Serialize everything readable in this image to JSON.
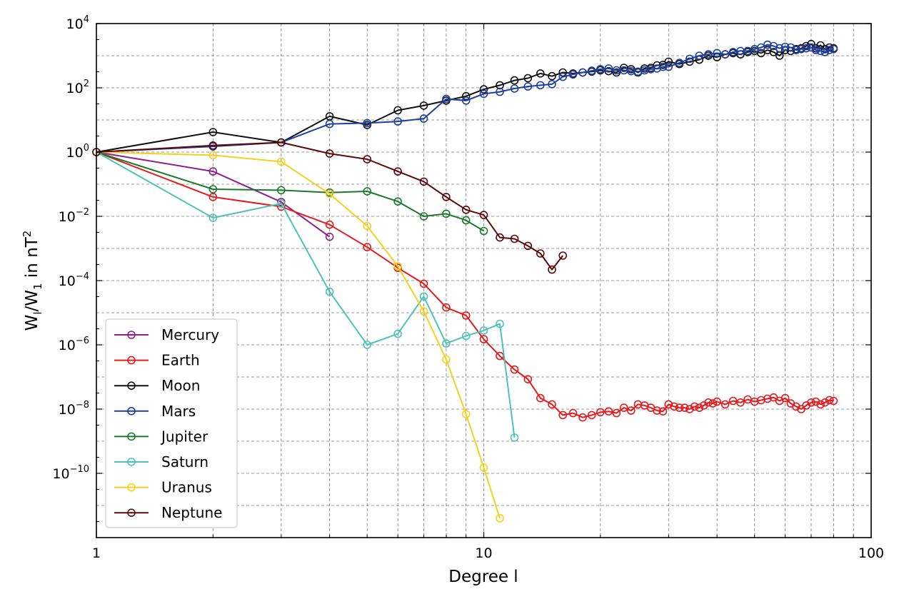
{
  "chart_data": {
    "type": "line",
    "title": "",
    "xlabel": "Degree l",
    "ylabel_main": "W",
    "ylabel_sub1": "l",
    "ylabel_mid": "/W",
    "ylabel_sub2": "1",
    "ylabel_unit": " in nT",
    "ylabel_sup": "2",
    "x_scale": "log",
    "y_scale": "log",
    "xlim": [
      1,
      100
    ],
    "ylim": [
      1e-12,
      10000.0
    ],
    "x_ticks": [
      1,
      10,
      100
    ],
    "x_tick_labels": [
      "1",
      "10",
      "100"
    ],
    "y_tick_exponents": [
      -10,
      -8,
      -6,
      -4,
      -2,
      0,
      2,
      4
    ],
    "y_tick_base": "10",
    "y_tick_exp_labels": [
      "−10",
      "−8",
      "−6",
      "−4",
      "−2",
      "0",
      "2",
      "4"
    ],
    "grid": true,
    "legend_position": "lower-left",
    "series": [
      {
        "name": "Mercury",
        "color": "#8e1f8e",
        "x": [
          1,
          2,
          3,
          4
        ],
        "y": [
          1,
          0.25,
          0.028,
          0.0023
        ]
      },
      {
        "name": "Earth",
        "color": "#e41a1c",
        "x": [
          1,
          2,
          3,
          4,
          5,
          6,
          7,
          8,
          9,
          10,
          11,
          12,
          13,
          14,
          15,
          16,
          17,
          18,
          19,
          20,
          21,
          22,
          23,
          24,
          25,
          26,
          27,
          28,
          29,
          30,
          31,
          32,
          33,
          34,
          35,
          36,
          37,
          38,
          39,
          40,
          42,
          44,
          46,
          48,
          50,
          52,
          54,
          56,
          58,
          60,
          62,
          64,
          66,
          68,
          70,
          72,
          74,
          76,
          78,
          80
        ],
        "y": [
          1,
          0.04,
          0.02,
          0.0055,
          0.0011,
          0.00025,
          8e-05,
          1.45e-05,
          8.2e-06,
          1.5e-06,
          4.5e-07,
          1.7e-07,
          8.5e-08,
          2.2e-08,
          1.4e-08,
          6.5e-09,
          7.5e-09,
          5.5e-09,
          6.5e-09,
          8e-09,
          8.5e-09,
          7.5e-09,
          1.1e-08,
          9e-09,
          1.4e-08,
          1.3e-08,
          1.1e-08,
          9e-09,
          8.5e-09,
          1.4e-08,
          1.2e-08,
          1.1e-08,
          1.1e-08,
          1e-08,
          1.2e-08,
          1.1e-08,
          1.3e-08,
          1.6e-08,
          1.5e-08,
          1.7e-08,
          1.4e-08,
          1.8e-08,
          1.6e-08,
          2e-08,
          1.7e-08,
          1.9e-08,
          2.1e-08,
          2.3e-08,
          1.8e-08,
          2.2e-08,
          1.5e-08,
          1.2e-08,
          1e-08,
          1.3e-08,
          1.6e-08,
          1.7e-08,
          1.4e-08,
          1.6e-08,
          1.9e-08,
          1.8e-08
        ]
      },
      {
        "name": "Moon",
        "color": "#111111",
        "x": [
          1,
          2,
          3,
          4,
          5,
          6,
          7,
          8,
          9,
          10,
          11,
          12,
          13,
          14,
          15,
          16,
          17,
          18,
          19,
          20,
          21,
          22,
          23,
          24,
          25,
          26,
          27,
          28,
          29,
          30,
          32,
          34,
          36,
          38,
          40,
          42,
          44,
          46,
          48,
          50,
          52,
          54,
          56,
          58,
          60,
          62,
          64,
          66,
          68,
          70,
          72,
          74,
          76,
          78,
          80
        ],
        "y": [
          1,
          4.2,
          2,
          13,
          7,
          20,
          28,
          40,
          55,
          90,
          120,
          170,
          200,
          280,
          230,
          300,
          280,
          300,
          320,
          350,
          330,
          300,
          420,
          380,
          300,
          400,
          420,
          500,
          520,
          650,
          550,
          650,
          750,
          1000,
          900,
          1100,
          1200,
          1100,
          1300,
          1400,
          1200,
          1500,
          1300,
          1000,
          1500,
          1400,
          1600,
          1700,
          2000,
          2300,
          1700,
          2100,
          1600,
          1800,
          1700
        ]
      },
      {
        "name": "Mars",
        "color": "#1f3fa0",
        "x": [
          1,
          2,
          3,
          4,
          5,
          6,
          7,
          8,
          9,
          10,
          11,
          12,
          13,
          14,
          15,
          16,
          17,
          18,
          19,
          20,
          21,
          22,
          23,
          24,
          25,
          26,
          27,
          28,
          29,
          30,
          32,
          34,
          36,
          38,
          40,
          42,
          44,
          46,
          48,
          50,
          52,
          54,
          56,
          58,
          60,
          62,
          64,
          66,
          68,
          70,
          72,
          74,
          76,
          78,
          80
        ],
        "y": [
          1,
          1.5,
          2,
          7.5,
          8,
          9,
          11,
          45,
          40,
          65,
          75,
          95,
          110,
          120,
          130,
          220,
          260,
          300,
          340,
          380,
          400,
          350,
          350,
          330,
          320,
          350,
          380,
          400,
          450,
          450,
          600,
          800,
          1000,
          1100,
          1200,
          1100,
          1300,
          1400,
          1400,
          1600,
          1800,
          2200,
          2000,
          1700,
          1900,
          1800,
          1500,
          1600,
          1700,
          1800,
          1500,
          1400,
          1300,
          1500,
          1600
        ]
      },
      {
        "name": "Jupiter",
        "color": "#1b7a2e",
        "x": [
          1,
          2,
          3,
          4,
          5,
          6,
          7,
          8,
          9,
          10
        ],
        "y": [
          1,
          0.07,
          0.065,
          0.055,
          0.06,
          0.029,
          0.01,
          0.012,
          0.0075,
          0.0035
        ]
      },
      {
        "name": "Saturn",
        "color": "#4fc1b9",
        "x": [
          1,
          2,
          3,
          4,
          5,
          6,
          7,
          8,
          9,
          10,
          11,
          12
        ],
        "y": [
          1,
          0.009,
          0.025,
          4.5e-05,
          1e-06,
          2.2e-06,
          3.2e-05,
          1.1e-06,
          1.9e-06,
          2.8e-06,
          4.5e-06,
          1.3e-09
        ]
      },
      {
        "name": "Uranus",
        "color": "#f5d020",
        "x": [
          1,
          2,
          3,
          4,
          5,
          6,
          7,
          8,
          9,
          10,
          11
        ],
        "y": [
          1,
          0.8,
          0.5,
          0.05,
          0.005,
          0.00028,
          1.1e-05,
          3.5e-07,
          7e-09,
          1.5e-10,
          4e-12
        ]
      },
      {
        "name": "Neptune",
        "color": "#5a0a0a",
        "x": [
          1,
          2,
          3,
          4,
          5,
          6,
          7,
          8,
          9,
          10,
          11,
          12,
          13,
          14,
          15,
          16
        ],
        "y": [
          1,
          1.6,
          2,
          0.9,
          0.6,
          0.25,
          0.12,
          0.04,
          0.016,
          0.011,
          0.0022,
          0.002,
          0.0012,
          0.0007,
          0.00022,
          0.0006
        ]
      }
    ]
  }
}
